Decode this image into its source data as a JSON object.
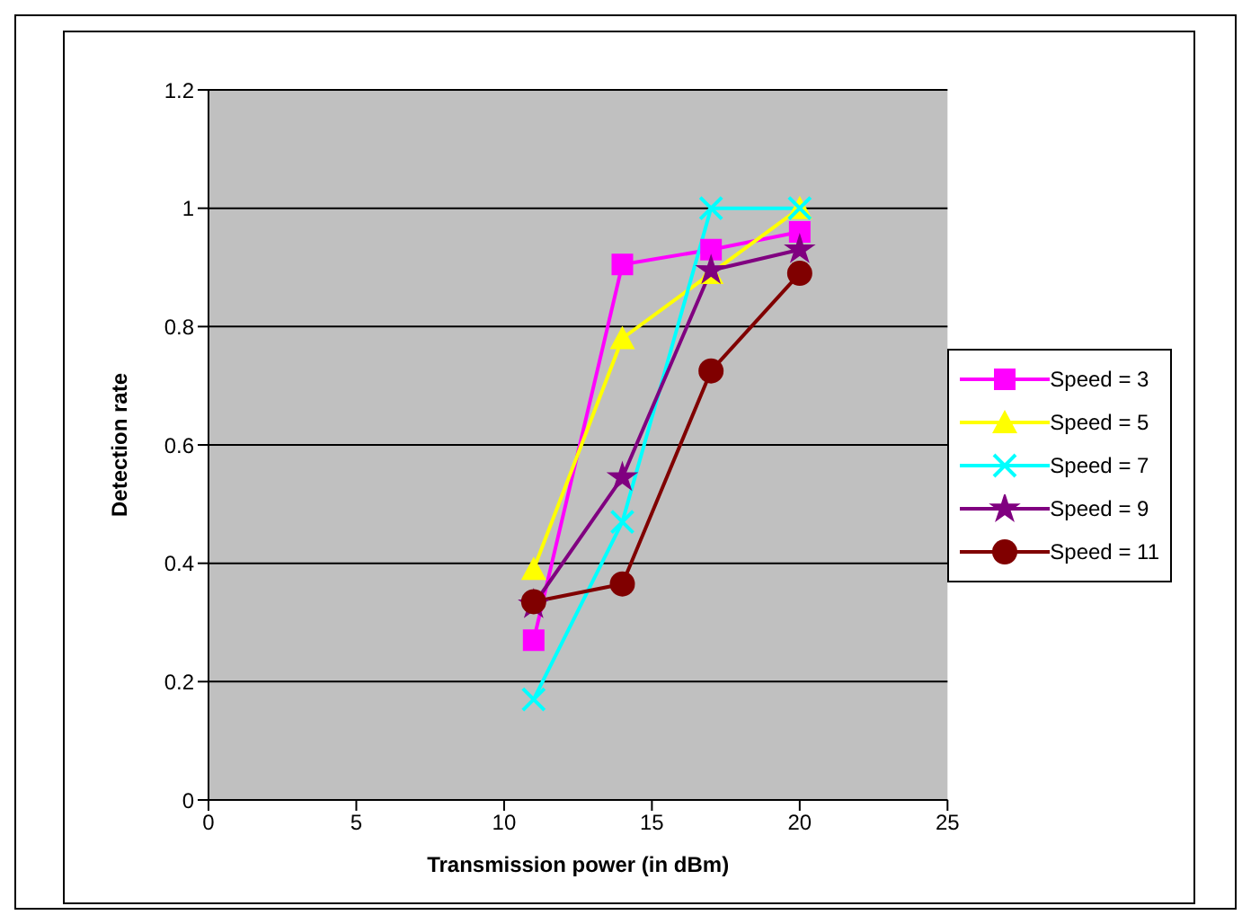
{
  "chart_data": {
    "type": "line",
    "xlabel": "Transmission power (in dBm)",
    "ylabel": "Detection rate",
    "x": [
      11,
      14,
      17,
      20
    ],
    "series": [
      {
        "name": "Speed = 3",
        "color": "#ff00ff",
        "marker": "square",
        "values": [
          0.27,
          0.905,
          0.93,
          0.96
        ]
      },
      {
        "name": "Speed = 5",
        "color": "#ffff00",
        "marker": "triangle",
        "values": [
          0.39,
          0.78,
          0.89,
          1.0
        ]
      },
      {
        "name": "Speed = 7",
        "color": "#00ffff",
        "marker": "cross",
        "values": [
          0.17,
          0.47,
          1.0,
          1.0
        ]
      },
      {
        "name": "Speed = 9",
        "color": "#800080",
        "marker": "star",
        "values": [
          0.33,
          0.545,
          0.895,
          0.93
        ]
      },
      {
        "name": "Speed = 11",
        "color": "#800000",
        "marker": "circle",
        "values": [
          0.335,
          0.365,
          0.725,
          0.89
        ]
      }
    ],
    "xlim": [
      0,
      25
    ],
    "xticks": [
      0,
      5,
      10,
      15,
      20,
      25
    ],
    "ylim": [
      0,
      1.2
    ],
    "yticks": [
      0,
      0.2,
      0.4,
      0.6,
      0.8,
      1,
      1.2
    ],
    "grid": "y",
    "legend": "right"
  }
}
